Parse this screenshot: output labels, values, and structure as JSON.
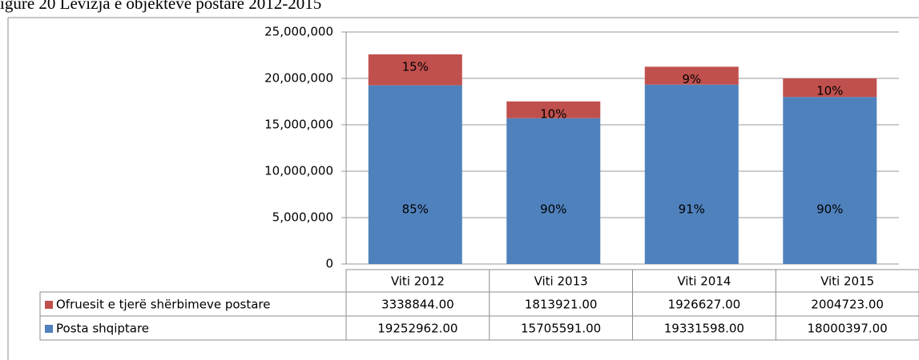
{
  "chart_data": {
    "type": "bar",
    "stacked": true,
    "title": "igure 20 Lëvizja e objekteve postare 2012-2015",
    "categories": [
      "Viti 2012",
      "Viti 2013",
      "Viti 2014",
      "Viti 2015"
    ],
    "series": [
      {
        "name": "Posta shqiptare",
        "color": "#4f81bd",
        "values": [
          19252962,
          15705591,
          19331598,
          18000397
        ],
        "value_labels": [
          "19252962.00",
          "15705591.00",
          "19331598.00",
          "18000397.00"
        ],
        "share_labels": [
          "85%",
          "90%",
          "91%",
          "90%"
        ]
      },
      {
        "name": "Ofruesit e tjerë shërbimeve postare",
        "color": "#c0504d",
        "values": [
          3338844,
          1813921,
          1926627,
          2004723
        ],
        "value_labels": [
          "3338844.00",
          "1813921.00",
          "1926627.00",
          "2004723.00"
        ],
        "share_labels": [
          "15%",
          "10%",
          "9%",
          "10%"
        ]
      }
    ],
    "ylim": [
      0,
      25000000
    ],
    "yticks": [
      {
        "value": 0,
        "label": "0"
      },
      {
        "value": 5000000,
        "label": "5,000,000"
      },
      {
        "value": 10000000,
        "label": "10,000,000"
      },
      {
        "value": 15000000,
        "label": "15,000,000"
      },
      {
        "value": 20000000,
        "label": "20,000,000"
      },
      {
        "value": 25000000,
        "label": "25,000,000"
      }
    ],
    "grid": true
  }
}
